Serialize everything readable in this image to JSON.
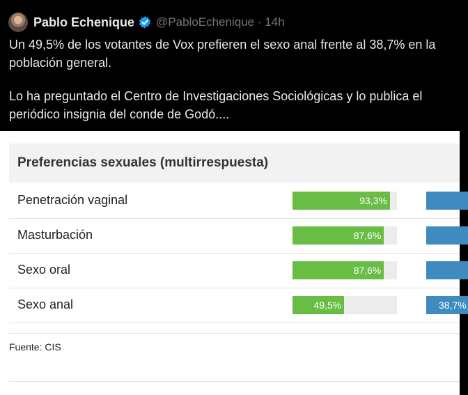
{
  "tweet": {
    "display_name": "Pablo Echenique",
    "handle_time": "@PabloEchenique · 14h",
    "text": [
      "Un 49,5% de los votantes de Vox prefieren el sexo anal frente al 38,7% en la población general.",
      "Lo ha preguntado el Centro de Investigaciones Sociológicas y lo publica el periódico insignia del conde de Godó...."
    ],
    "icons": {
      "avatar": "profile-photo",
      "verified": "verified-badge-icon"
    },
    "colors": {
      "background": "#000000",
      "text": "#e7e9ea",
      "muted": "#71767b",
      "verified": "#1d9bf0"
    }
  },
  "chart_data": {
    "type": "bar",
    "title": "Preferencias sexuales (multirrespuesta)",
    "categories": [
      "Penetración vaginal",
      "Masturbación",
      "Sexo oral",
      "Sexo anal"
    ],
    "series": [
      {
        "values": [
          93.3,
          87.6,
          87.6,
          49.5
        ],
        "labels": [
          "93,3%",
          "87,6%",
          "87,6%",
          "49,5%"
        ],
        "color": "#69bd45"
      },
      {
        "values": [
          null,
          null,
          null,
          38.7
        ],
        "labels": [
          "",
          "",
          "",
          "38,7%"
        ],
        "color": "#3f8bc0"
      }
    ],
    "ylim": [
      0,
      100
    ],
    "source": "Fuente: CIS"
  }
}
